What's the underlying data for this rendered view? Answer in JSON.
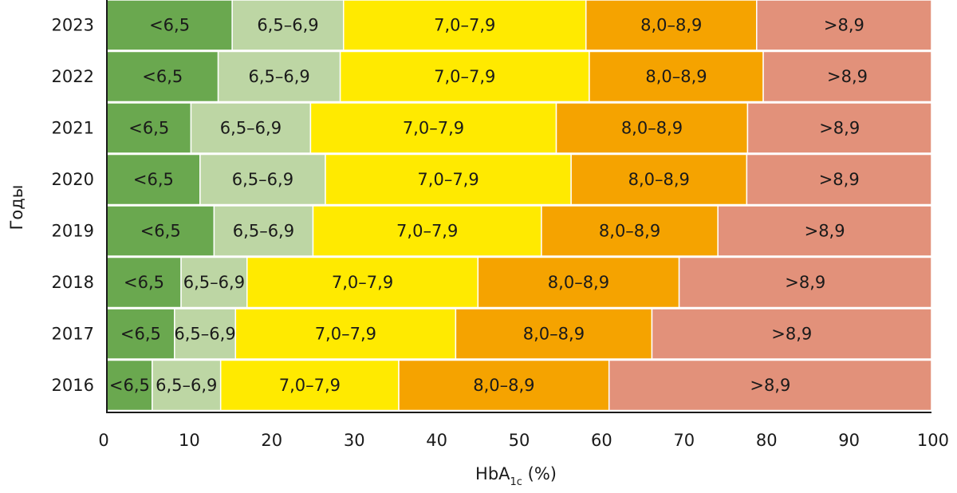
{
  "chart_data": {
    "type": "bar",
    "orientation": "horizontal",
    "stacked": true,
    "percent": true,
    "categories": [
      "2023",
      "2022",
      "2021",
      "2020",
      "2019",
      "2018",
      "2017",
      "2016"
    ],
    "series": [
      {
        "name": "<6,5",
        "color": "#6aa84f",
        "values": [
          15.2,
          13.5,
          10.2,
          11.3,
          13.0,
          9.0,
          8.2,
          5.5
        ]
      },
      {
        "name": "6,5–6,9",
        "color": "#bdd6a4",
        "values": [
          13.5,
          14.8,
          14.5,
          15.2,
          12.0,
          8.0,
          7.4,
          8.3
        ]
      },
      {
        "name": "7,0–7,9",
        "color": "#ffea00",
        "values": [
          29.4,
          30.2,
          29.8,
          29.8,
          27.7,
          28.0,
          26.7,
          21.6
        ]
      },
      {
        "name": "8,0–8,9",
        "color": "#f5a300",
        "values": [
          20.7,
          21.1,
          23.2,
          21.3,
          21.4,
          24.4,
          23.8,
          25.5
        ]
      },
      {
        "name": ">8,9",
        "color": "#e2917a",
        "values": [
          21.2,
          20.4,
          22.3,
          22.4,
          25.9,
          30.6,
          33.9,
          39.1
        ]
      }
    ],
    "xlabel_main": "HbA",
    "xlabel_sub": "1c",
    "xlabel_suffix": " (%)",
    "ylabel": "Годы",
    "xlim": [
      0,
      100
    ],
    "xticks": [
      "0",
      "10",
      "20",
      "30",
      "40",
      "50",
      "60",
      "70",
      "80",
      "90",
      "100"
    ],
    "grid": false,
    "legend": "none"
  }
}
